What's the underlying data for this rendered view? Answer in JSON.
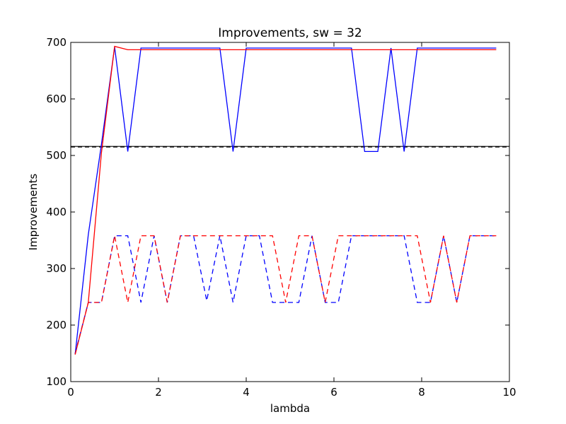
{
  "chart_data": {
    "type": "line",
    "title": "Improvements, sw = 32",
    "xlabel": "lambda",
    "ylabel": "Improvements",
    "xlim": [
      0,
      10
    ],
    "ylim": [
      100,
      700
    ],
    "xticks": [
      0,
      2,
      4,
      6,
      8,
      10
    ],
    "yticks": [
      100,
      200,
      300,
      400,
      500,
      600,
      700
    ],
    "grid": false,
    "legend": "none",
    "hlines": [
      {
        "y": 516,
        "color": "#000000",
        "style": "solid"
      },
      {
        "y": 515,
        "color": "#000000",
        "style": "dashed"
      }
    ],
    "series": [
      {
        "color": "#0000ff",
        "style": "solid",
        "x": [
          0.1,
          0.4,
          0.7,
          1.0,
          1.3,
          1.6,
          1.9,
          2.2,
          2.5,
          2.8,
          3.1,
          3.4,
          3.7,
          4.0,
          4.3,
          4.6,
          4.9,
          5.2,
          5.5,
          5.8,
          6.1,
          6.4,
          6.7,
          7.0,
          7.3,
          7.6,
          7.9,
          8.2,
          8.5,
          8.8,
          9.1,
          9.4,
          9.7
        ],
        "y": [
          148,
          360,
          520,
          692,
          507,
          690,
          690,
          690,
          690,
          690,
          690,
          690,
          507,
          690,
          690,
          690,
          690,
          690,
          690,
          690,
          690,
          690,
          507,
          507,
          690,
          507,
          690,
          690,
          690,
          690,
          690,
          690,
          690
        ]
      },
      {
        "color": "#ff0000",
        "style": "solid",
        "x": [
          0.1,
          0.4,
          0.7,
          1.0,
          1.3,
          1.6,
          1.9,
          2.2,
          2.5,
          2.8,
          3.1,
          3.4,
          3.7,
          4.0,
          4.3,
          4.6,
          4.9,
          5.2,
          5.5,
          5.8,
          6.1,
          6.4,
          6.7,
          7.0,
          7.3,
          7.6,
          7.9,
          8.2,
          8.5,
          8.8,
          9.1,
          9.4,
          9.7
        ],
        "y": [
          148,
          240,
          505,
          693,
          687,
          687,
          687,
          687,
          687,
          687,
          687,
          687,
          687,
          687,
          687,
          687,
          687,
          687,
          687,
          687,
          687,
          687,
          687,
          687,
          687,
          687,
          687,
          687,
          687,
          687,
          687,
          687,
          687
        ]
      },
      {
        "color": "#0000ff",
        "style": "dashed",
        "x": [
          0.1,
          0.4,
          0.7,
          1.0,
          1.3,
          1.6,
          1.9,
          2.2,
          2.5,
          2.8,
          3.1,
          3.4,
          3.7,
          4.0,
          4.3,
          4.6,
          4.9,
          5.2,
          5.5,
          5.8,
          6.1,
          6.4,
          6.7,
          7.0,
          7.3,
          7.6,
          7.9,
          8.2,
          8.5,
          8.8,
          9.1,
          9.4,
          9.7
        ],
        "y": [
          150,
          240,
          240,
          358,
          358,
          240,
          358,
          240,
          358,
          358,
          243,
          358,
          240,
          358,
          358,
          240,
          240,
          240,
          358,
          240,
          240,
          358,
          358,
          358,
          358,
          358,
          240,
          240,
          358,
          240,
          358,
          358,
          358
        ]
      },
      {
        "color": "#ff0000",
        "style": "dashed",
        "x": [
          0.1,
          0.4,
          0.7,
          1.0,
          1.3,
          1.6,
          1.9,
          2.2,
          2.5,
          2.8,
          3.1,
          3.4,
          3.7,
          4.0,
          4.3,
          4.6,
          4.9,
          5.2,
          5.5,
          5.8,
          6.1,
          6.4,
          6.7,
          7.0,
          7.3,
          7.6,
          7.9,
          8.2,
          8.5,
          8.8,
          9.1,
          9.4,
          9.7
        ],
        "y": [
          148,
          240,
          240,
          358,
          240,
          358,
          358,
          240,
          358,
          358,
          358,
          358,
          358,
          358,
          358,
          358,
          240,
          358,
          358,
          240,
          358,
          358,
          358,
          358,
          358,
          358,
          358,
          240,
          358,
          240,
          358,
          358,
          358
        ]
      }
    ]
  }
}
